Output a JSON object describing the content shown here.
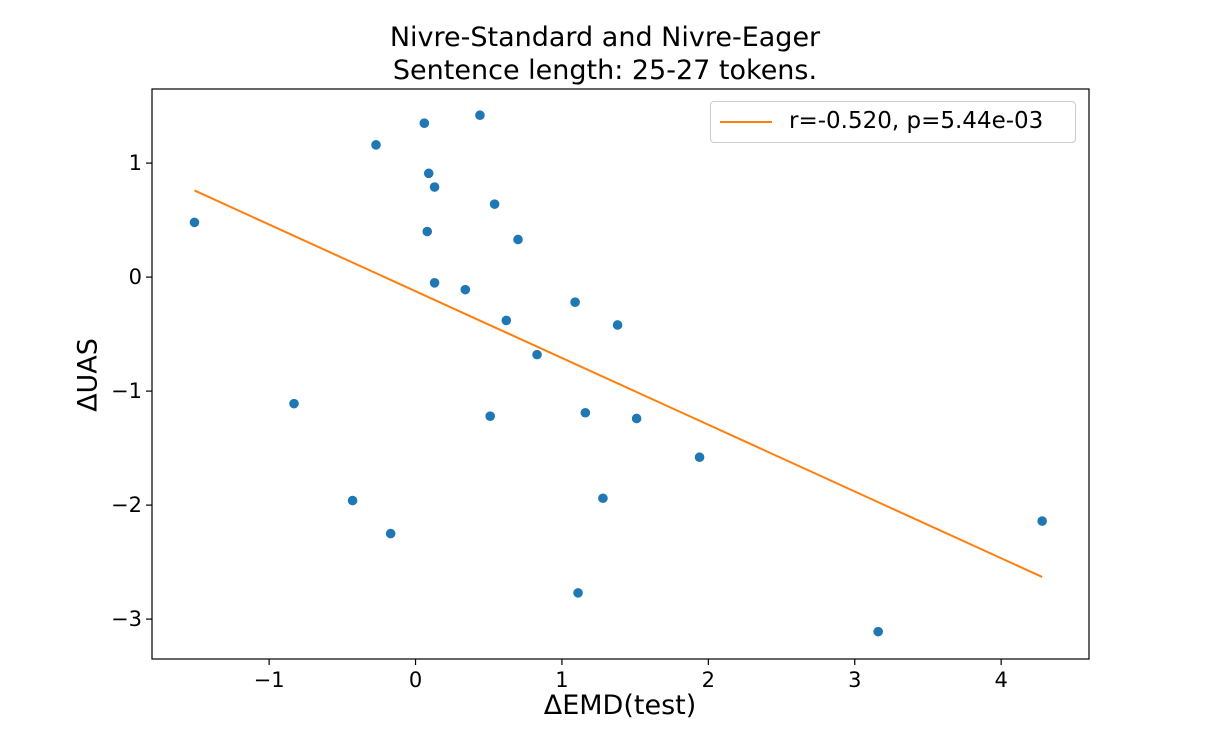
{
  "chart_data": {
    "type": "scatter",
    "title_lines": [
      "Nivre-Standard and Nivre-Eager",
      "Sentence length: 25-27 tokens."
    ],
    "xlabel": "ΔEMD(test)",
    "ylabel": "ΔUAS",
    "xlim": [
      -1.8,
      4.6
    ],
    "ylim": [
      -3.35,
      1.65
    ],
    "xticks": [
      -1,
      0,
      1,
      2,
      3,
      4
    ],
    "xtick_labels": [
      "−1",
      "0",
      "1",
      "2",
      "3",
      "4"
    ],
    "yticks": [
      -3,
      -2,
      -1,
      0,
      1
    ],
    "ytick_labels": [
      "−3",
      "−2",
      "−1",
      "0",
      "1"
    ],
    "grid": false,
    "legend_position": "top-right",
    "points": [
      {
        "x": -1.51,
        "y": 0.48
      },
      {
        "x": -0.83,
        "y": -1.11
      },
      {
        "x": -0.43,
        "y": -1.96
      },
      {
        "x": -0.27,
        "y": 1.16
      },
      {
        "x": -0.17,
        "y": -2.25
      },
      {
        "x": 0.06,
        "y": 1.35
      },
      {
        "x": 0.08,
        "y": 0.4
      },
      {
        "x": 0.09,
        "y": 0.91
      },
      {
        "x": 0.13,
        "y": 0.79
      },
      {
        "x": 0.13,
        "y": -0.05
      },
      {
        "x": 0.34,
        "y": -0.11
      },
      {
        "x": 0.44,
        "y": 1.42
      },
      {
        "x": 0.51,
        "y": -1.22
      },
      {
        "x": 0.54,
        "y": 0.64
      },
      {
        "x": 0.62,
        "y": -0.38
      },
      {
        "x": 0.7,
        "y": 0.33
      },
      {
        "x": 0.83,
        "y": -0.68
      },
      {
        "x": 1.09,
        "y": -0.22
      },
      {
        "x": 1.11,
        "y": -2.77
      },
      {
        "x": 1.16,
        "y": -1.19
      },
      {
        "x": 1.28,
        "y": -1.94
      },
      {
        "x": 1.38,
        "y": -0.42
      },
      {
        "x": 1.51,
        "y": -1.24
      },
      {
        "x": 1.94,
        "y": -1.58
      },
      {
        "x": 3.16,
        "y": -3.11
      },
      {
        "x": 4.28,
        "y": -2.14
      }
    ],
    "fit_line": {
      "label": "r=-0.520, p=5.44e-03",
      "x": [
        -1.51,
        4.28
      ],
      "y": [
        0.76,
        -2.63
      ]
    },
    "colors": {
      "points": "#1f77b4",
      "fit_line": "#ff7f0e"
    }
  }
}
